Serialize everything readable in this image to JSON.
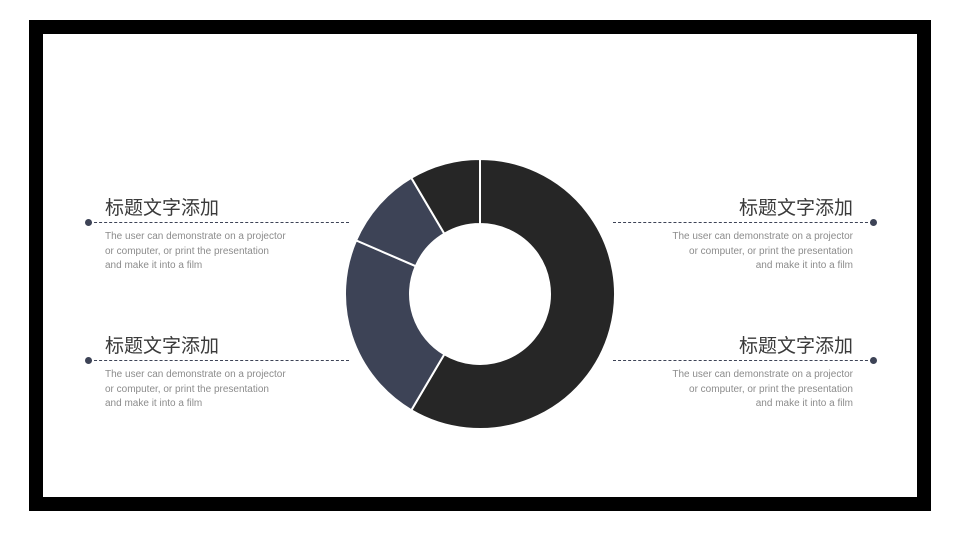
{
  "blocks": [
    {
      "title": "标题文字添加",
      "desc": [
        "The user can demonstrate on a projector",
        "or computer, or print the presentation",
        "and make it into a film"
      ]
    },
    {
      "title": "标题文字添加",
      "desc": [
        "The user can demonstrate on a projector",
        "or computer, or print the presentation",
        "and make it into a film"
      ]
    },
    {
      "title": "标题文字添加",
      "desc": [
        "The user can demonstrate on a projector",
        "or computer, or print the presentation",
        "and make it into a film"
      ]
    },
    {
      "title": "标题文字添加",
      "desc": [
        "The user can demonstrate on a projector",
        "or computer, or print the presentation",
        "and make it into a film"
      ]
    }
  ],
  "colors": {
    "frame": "#000000",
    "dark": "#262626",
    "navy": "#3d4356",
    "accent": "#3d4356"
  },
  "chart_data": {
    "type": "pie",
    "donut": true,
    "start": "top",
    "direction": "clockwise",
    "values": [
      58.5,
      23,
      10,
      8.5
    ],
    "colors": [
      "#262626",
      "#3d4356",
      "#3d4356",
      "#262626"
    ]
  }
}
